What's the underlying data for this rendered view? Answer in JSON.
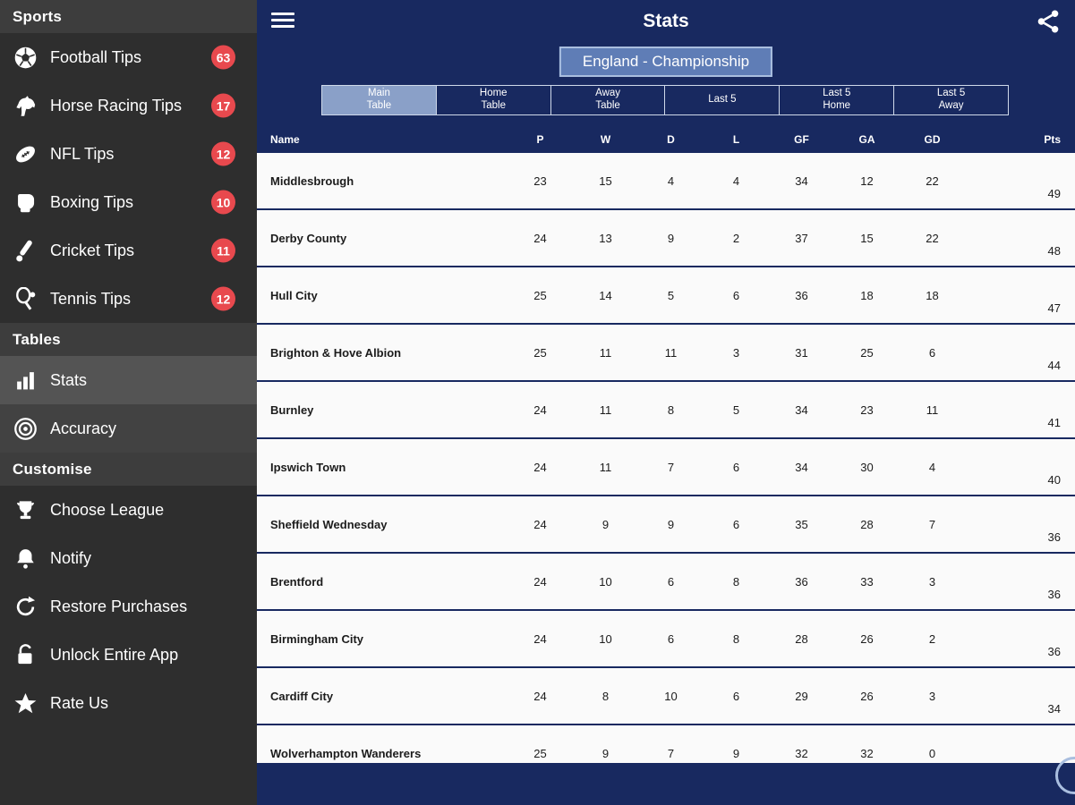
{
  "header": {
    "title": "Stats"
  },
  "league_selector": {
    "label": "England - Championship"
  },
  "sidebar": {
    "sections": [
      {
        "header": "Sports",
        "items": [
          {
            "label": "Football Tips",
            "icon": "football-icon",
            "badge": "63"
          },
          {
            "label": "Horse Racing Tips",
            "icon": "horse-racing-icon",
            "badge": "17"
          },
          {
            "label": "NFL Tips",
            "icon": "american-football-icon",
            "badge": "12"
          },
          {
            "label": "Boxing Tips",
            "icon": "boxing-glove-icon",
            "badge": "10"
          },
          {
            "label": "Cricket Tips",
            "icon": "cricket-bat-icon",
            "badge": "11"
          },
          {
            "label": "Tennis Tips",
            "icon": "tennis-racket-icon",
            "badge": "12"
          }
        ]
      },
      {
        "header": "Tables",
        "items": [
          {
            "label": "Stats",
            "icon": "bar-chart-icon",
            "selected": true
          },
          {
            "label": "Accuracy",
            "icon": "target-icon"
          }
        ]
      },
      {
        "header": "Customise",
        "items": [
          {
            "label": "Choose League",
            "icon": "trophy-icon"
          },
          {
            "label": "Notify",
            "icon": "bell-icon"
          },
          {
            "label": "Restore Purchases",
            "icon": "restore-arrow-icon"
          },
          {
            "label": "Unlock Entire App",
            "icon": "padlock-icon"
          },
          {
            "label": "Rate Us",
            "icon": "star-icon"
          }
        ]
      }
    ]
  },
  "tabs": [
    {
      "lines": [
        "Main",
        "Table"
      ],
      "selected": true
    },
    {
      "lines": [
        "Home",
        "Table"
      ]
    },
    {
      "lines": [
        "Away",
        "Table"
      ]
    },
    {
      "lines": [
        "Last 5"
      ]
    },
    {
      "lines": [
        "Last 5",
        "Home"
      ]
    },
    {
      "lines": [
        "Last 5",
        "Away"
      ]
    }
  ],
  "table": {
    "columns": [
      "Name",
      "P",
      "W",
      "D",
      "L",
      "GF",
      "GA",
      "GD",
      "Pts"
    ],
    "rows": [
      [
        "Middlesbrough",
        "23",
        "15",
        "4",
        "4",
        "34",
        "12",
        "22",
        "49"
      ],
      [
        "Derby County",
        "24",
        "13",
        "9",
        "2",
        "37",
        "15",
        "22",
        "48"
      ],
      [
        "Hull City",
        "25",
        "14",
        "5",
        "6",
        "36",
        "18",
        "18",
        "47"
      ],
      [
        "Brighton & Hove Albion",
        "25",
        "11",
        "11",
        "3",
        "31",
        "25",
        "6",
        "44"
      ],
      [
        "Burnley",
        "24",
        "11",
        "8",
        "5",
        "34",
        "23",
        "11",
        "41"
      ],
      [
        "Ipswich Town",
        "24",
        "11",
        "7",
        "6",
        "34",
        "30",
        "4",
        "40"
      ],
      [
        "Sheffield Wednesday",
        "24",
        "9",
        "9",
        "6",
        "35",
        "28",
        "7",
        "36"
      ],
      [
        "Brentford",
        "24",
        "10",
        "6",
        "8",
        "36",
        "33",
        "3",
        "36"
      ],
      [
        "Birmingham City",
        "24",
        "10",
        "6",
        "8",
        "28",
        "26",
        "2",
        "36"
      ],
      [
        "Cardiff City",
        "24",
        "8",
        "10",
        "6",
        "29",
        "26",
        "3",
        "34"
      ],
      [
        "Wolverhampton Wanderers",
        "25",
        "9",
        "7",
        "9",
        "32",
        "32",
        "0",
        ""
      ]
    ]
  },
  "colors": {
    "navy": "#182960",
    "badge_red": "#e8494e",
    "selected_tab": "#8aa0c8",
    "league_button": "#5f7db6",
    "sidebar_bg": "#2e2e2e"
  }
}
